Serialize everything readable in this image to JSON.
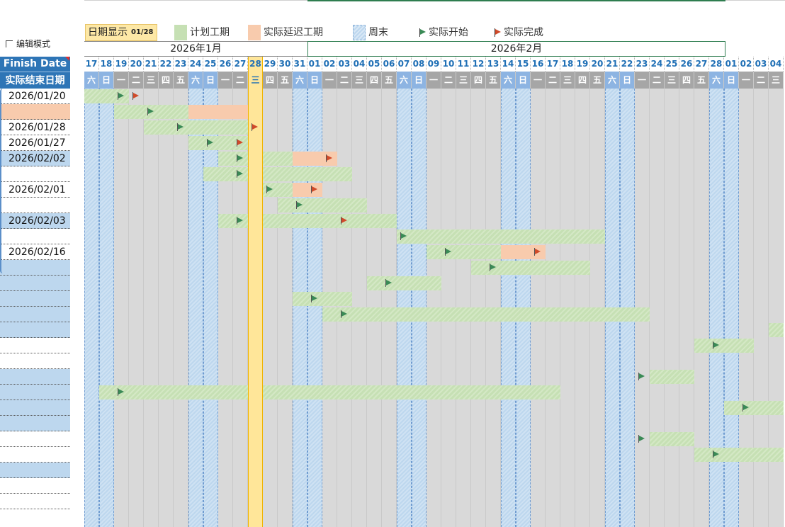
{
  "toolbar": {
    "edit_mode_label": "编辑模式",
    "date_display_label": "日期显示",
    "date_display_value": "01/28"
  },
  "legend": {
    "planned": "计划工期",
    "delay": "实际延迟工期",
    "weekend": "周末",
    "actual_start": "实际开始",
    "actual_finish": "实际完成"
  },
  "months": {
    "jan": "2026年1月",
    "feb": "2026年2月"
  },
  "left_headers": {
    "finish_date": "Finish Date",
    "actual_end": "实际结束日期"
  },
  "rows": [
    {
      "finish_date": "2026/01/20"
    },
    {
      "finish_date": ""
    },
    {
      "finish_date": "2026/01/28"
    },
    {
      "finish_date": "2026/01/27"
    },
    {
      "finish_date": "2026/02/02"
    },
    {
      "finish_date": ""
    },
    {
      "finish_date": "2026/02/01"
    },
    {
      "finish_date": ""
    },
    {
      "finish_date": "2026/02/03"
    },
    {
      "finish_date": ""
    },
    {
      "finish_date": "2026/02/16"
    }
  ],
  "days": [
    "17",
    "18",
    "19",
    "20",
    "21",
    "22",
    "23",
    "24",
    "25",
    "26",
    "27",
    "28",
    "29",
    "30",
    "31",
    "01",
    "02",
    "03",
    "04",
    "05",
    "06",
    "07",
    "08",
    "09",
    "10",
    "11",
    "12",
    "13",
    "14",
    "15",
    "16",
    "17",
    "18",
    "19",
    "20",
    "21",
    "22",
    "23",
    "24",
    "25",
    "26",
    "27",
    "28",
    "01",
    "02",
    "03",
    "04"
  ],
  "weekdays": [
    "六",
    "日",
    "一",
    "二",
    "三",
    "四",
    "五",
    "六",
    "日",
    "一",
    "二",
    "三",
    "四",
    "五",
    "六",
    "日",
    "一",
    "二",
    "三",
    "四",
    "五",
    "六",
    "日",
    "一",
    "二",
    "三",
    "四",
    "五",
    "六",
    "日",
    "一",
    "二",
    "三",
    "四",
    "五",
    "六",
    "日",
    "一",
    "二",
    "三",
    "四",
    "五",
    "六",
    "日",
    "一",
    "二",
    "三"
  ],
  "colors": {
    "header_blue": "#2e75b6",
    "planned_green": "#c6e0b4",
    "delay_orange": "#f8cbad",
    "weekend_blue": "#bdd7ee",
    "today_yellow": "#ffe699",
    "start_flag": "#3a8a56",
    "finish_flag": "#d04a2a"
  },
  "today_index": 11
}
